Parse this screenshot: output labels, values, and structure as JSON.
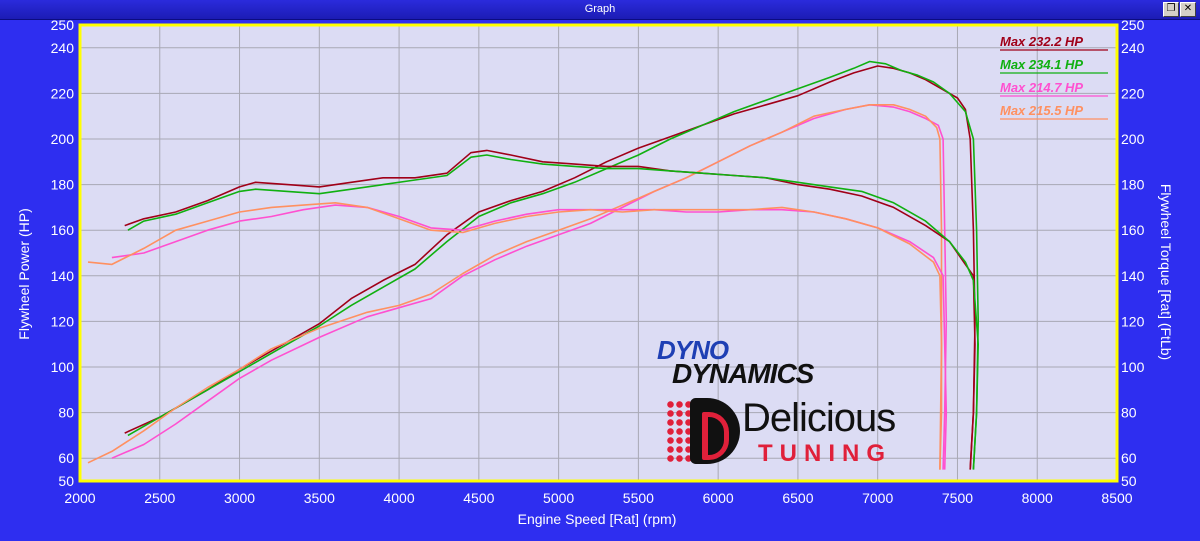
{
  "window": {
    "title": "Graph",
    "restore_icon": "restore-window-icon",
    "close_icon": "close-window-icon"
  },
  "colors": {
    "plot_bg": "#dcdcf4",
    "frame": "#ffff00",
    "grid": "#a8a8b4",
    "outer_bg": "#2e2ef0",
    "text": "#ffffff"
  },
  "logos": {
    "dyno_top": "DYNO",
    "dyno_bottom": "DYNAMICS",
    "brand_main": "Delicious",
    "brand_sub": "TUNING"
  },
  "chart_data": {
    "type": "line",
    "xlabel": "Engine Speed [Rat] (rpm)",
    "ylabel": "Flywheel Power (HP)",
    "y2label": "Flywheel Torque [Rat] (FtLb)",
    "xlim": [
      2000,
      8500
    ],
    "ylim": [
      50,
      250
    ],
    "y2lim": [
      50,
      250
    ],
    "x_ticks": [
      2000,
      2500,
      3000,
      3500,
      4000,
      4500,
      5000,
      5500,
      6000,
      6500,
      7000,
      7500,
      8000,
      8500
    ],
    "y_ticks": [
      50,
      60,
      80,
      100,
      120,
      140,
      160,
      180,
      200,
      220,
      240,
      250
    ],
    "grid": true,
    "legend_position": "top-right",
    "series": [
      {
        "name": "Max 232.2 HP",
        "kind": "power",
        "color": "#a00018",
        "x": [
          2280,
          2500,
          2800,
          3000,
          3300,
          3500,
          3700,
          3900,
          4100,
          4300,
          4500,
          4700,
          4900,
          5100,
          5300,
          5500,
          5700,
          5900,
          6100,
          6300,
          6500,
          6700,
          6850,
          7000,
          7100,
          7200,
          7300,
          7400,
          7500,
          7550,
          7580,
          7600,
          7610,
          7600,
          7580
        ],
        "y": [
          71,
          78,
          90,
          99,
          111,
          119,
          130,
          138,
          145,
          158,
          168,
          173,
          177,
          183,
          190,
          196,
          201,
          206,
          211,
          215,
          219,
          225,
          229,
          232,
          231,
          229,
          226,
          222,
          218,
          213,
          200,
          160,
          120,
          80,
          55
        ]
      },
      {
        "name": "Max 234.1 HP",
        "kind": "power",
        "color": "#10b010",
        "x": [
          2300,
          2500,
          2800,
          3000,
          3300,
          3500,
          3700,
          3900,
          4100,
          4300,
          4500,
          4700,
          4900,
          5100,
          5300,
          5500,
          5700,
          5900,
          6100,
          6300,
          6500,
          6700,
          6850,
          6950,
          7050,
          7150,
          7250,
          7350,
          7450,
          7550,
          7600,
          7620,
          7630,
          7620,
          7600
        ],
        "y": [
          70,
          78,
          90,
          98,
          110,
          118,
          127,
          135,
          143,
          155,
          166,
          172,
          176,
          181,
          187,
          193,
          200,
          206,
          212,
          217,
          222,
          227,
          231,
          234,
          233,
          230,
          228,
          225,
          220,
          212,
          200,
          160,
          120,
          80,
          55
        ]
      },
      {
        "name": "Max 214.7 HP",
        "kind": "power",
        "color": "#ff50d0",
        "x": [
          2200,
          2400,
          2600,
          2800,
          3000,
          3200,
          3500,
          3800,
          4000,
          4200,
          4400,
          4600,
          4800,
          5000,
          5200,
          5400,
          5600,
          5800,
          6000,
          6200,
          6400,
          6600,
          6800,
          6950,
          7100,
          7200,
          7300,
          7380,
          7410,
          7420,
          7430,
          7420,
          7410
        ],
        "y": [
          60,
          66,
          75,
          85,
          95,
          103,
          113,
          122,
          126,
          130,
          140,
          147,
          153,
          158,
          163,
          170,
          177,
          183,
          190,
          197,
          203,
          209,
          213,
          215,
          214,
          212,
          209,
          206,
          200,
          160,
          120,
          80,
          55
        ]
      },
      {
        "name": "Max 215.5 HP",
        "kind": "power",
        "color": "#ff9060",
        "x": [
          2050,
          2200,
          2400,
          2600,
          2800,
          3000,
          3200,
          3500,
          3800,
          4000,
          4200,
          4400,
          4600,
          4800,
          5000,
          5200,
          5400,
          5600,
          5800,
          6000,
          6200,
          6400,
          6600,
          6800,
          6950,
          7100,
          7200,
          7300,
          7370,
          7390,
          7400,
          7400,
          7390
        ],
        "y": [
          58,
          63,
          72,
          82,
          91,
          99,
          108,
          117,
          124,
          127,
          132,
          141,
          149,
          155,
          160,
          165,
          171,
          177,
          183,
          190,
          197,
          203,
          210,
          213,
          215,
          215,
          213,
          210,
          205,
          200,
          160,
          110,
          55
        ]
      },
      {
        "kind": "torque",
        "color": "#a00018",
        "x": [
          2280,
          2400,
          2600,
          2800,
          3000,
          3100,
          3300,
          3500,
          3700,
          3900,
          4100,
          4300,
          4450,
          4550,
          4700,
          4900,
          5100,
          5300,
          5500,
          5700,
          5900,
          6100,
          6300,
          6500,
          6700,
          6900,
          7100,
          7300,
          7450,
          7550,
          7600,
          7610,
          7600,
          7580
        ],
        "y": [
          162,
          165,
          168,
          173,
          179,
          181,
          180,
          179,
          181,
          183,
          183,
          185,
          194,
          195,
          193,
          190,
          189,
          188,
          188,
          186,
          185,
          184,
          183,
          180,
          178,
          175,
          170,
          162,
          155,
          145,
          140,
          110,
          80,
          55
        ]
      },
      {
        "kind": "torque",
        "color": "#10b010",
        "x": [
          2300,
          2400,
          2600,
          2800,
          3000,
          3100,
          3300,
          3500,
          3700,
          3900,
          4100,
          4300,
          4450,
          4550,
          4700,
          4900,
          5100,
          5300,
          5500,
          5700,
          5900,
          6100,
          6300,
          6500,
          6700,
          6900,
          7100,
          7300,
          7450,
          7550,
          7600,
          7630,
          7620,
          7600
        ],
        "y": [
          160,
          164,
          167,
          172,
          177,
          178,
          177,
          176,
          178,
          180,
          182,
          184,
          192,
          193,
          191,
          189,
          188,
          187,
          187,
          186,
          185,
          184,
          183,
          181,
          179,
          177,
          172,
          164,
          155,
          146,
          138,
          110,
          80,
          55
        ]
      },
      {
        "kind": "torque",
        "color": "#ff50d0",
        "x": [
          2200,
          2400,
          2600,
          2800,
          3000,
          3200,
          3400,
          3600,
          3800,
          4000,
          4200,
          4400,
          4600,
          4800,
          5000,
          5200,
          5400,
          5600,
          5800,
          6000,
          6200,
          6400,
          6600,
          6800,
          7000,
          7200,
          7350,
          7410,
          7420,
          7430,
          7420
        ],
        "y": [
          148,
          150,
          155,
          160,
          164,
          166,
          169,
          171,
          170,
          166,
          161,
          160,
          164,
          167,
          169,
          169,
          169,
          169,
          168,
          168,
          169,
          169,
          168,
          165,
          161,
          155,
          148,
          140,
          110,
          80,
          55
        ]
      },
      {
        "kind": "torque",
        "color": "#ff9060",
        "x": [
          2050,
          2200,
          2400,
          2600,
          2800,
          3000,
          3200,
          3400,
          3600,
          3800,
          4000,
          4200,
          4400,
          4600,
          4800,
          5000,
          5200,
          5400,
          5600,
          5800,
          6000,
          6200,
          6400,
          6600,
          6800,
          7000,
          7200,
          7350,
          7390,
          7400,
          7400,
          7390
        ],
        "y": [
          146,
          145,
          152,
          160,
          164,
          168,
          170,
          171,
          172,
          170,
          165,
          160,
          159,
          163,
          166,
          168,
          169,
          168,
          169,
          169,
          169,
          169,
          170,
          168,
          165,
          161,
          154,
          146,
          140,
          110,
          80,
          55
        ]
      }
    ]
  }
}
